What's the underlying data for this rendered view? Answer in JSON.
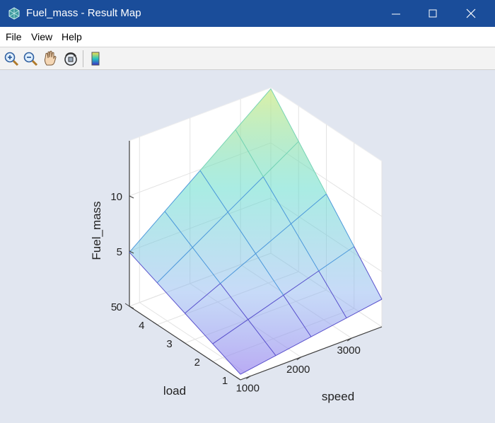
{
  "window": {
    "title": "Fuel_mass - Result Map"
  },
  "menu": {
    "file": "File",
    "view": "View",
    "help": "Help"
  },
  "toolbar": {
    "tools": [
      "zoom-in-icon",
      "zoom-out-icon",
      "pan-hand-icon",
      "rotate-3d-icon",
      "colorbar-icon"
    ]
  },
  "colors": {
    "titlebar": "#1a4d9a",
    "background": "#e1e6f0",
    "surface_low": "#9a80ee",
    "surface_high": "#d0eb88"
  },
  "chart_data": {
    "type": "surface",
    "xlabel": "speed",
    "ylabel": "load",
    "zlabel": "Fuel_mass",
    "x": [
      800,
      1500,
      2200,
      2900,
      3600
    ],
    "y": [
      1,
      2,
      3,
      4,
      5
    ],
    "z": [
      [
        0.5,
        1.0,
        1.5,
        2.0,
        2.5
      ],
      [
        1.6,
        2.6,
        3.6,
        4.6,
        5.6
      ],
      [
        2.7,
        4.2,
        5.7,
        7.2,
        8.7
      ],
      [
        3.8,
        5.8,
        7.8,
        9.8,
        11.8
      ],
      [
        4.9,
        7.4,
        9.9,
        12.4,
        14.9
      ]
    ],
    "xlim": [
      800,
      3600
    ],
    "ylim": [
      1,
      5
    ],
    "zlim": [
      0,
      15
    ],
    "xticks": [
      "1000",
      "2000",
      "3000"
    ],
    "yticks": [
      "1",
      "2",
      "3",
      "4",
      "5"
    ],
    "zticks": [
      "0",
      "5",
      "10"
    ],
    "grid": true
  }
}
